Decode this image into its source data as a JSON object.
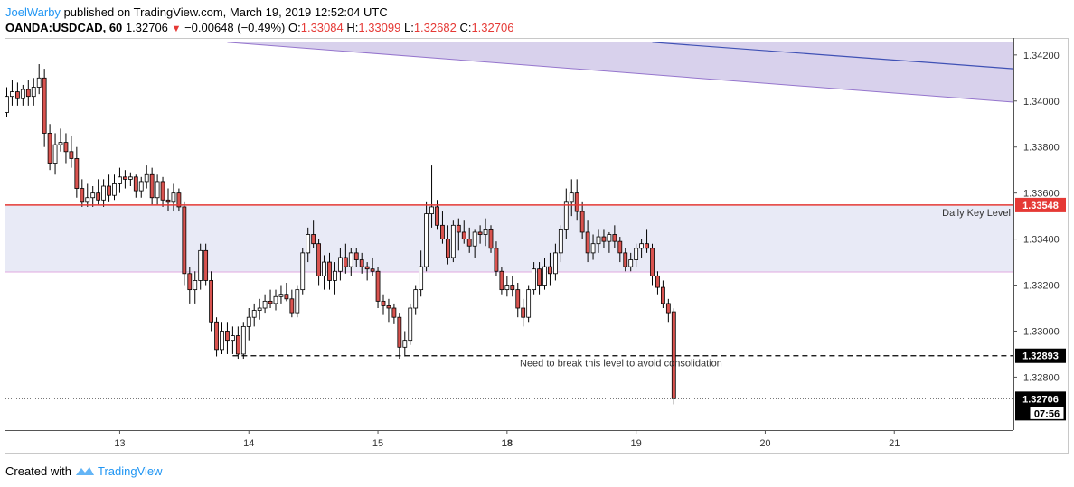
{
  "header": {
    "author": "JoelWarby",
    "published": "published on TradingView.com, March 19, 2019 12:52:04 UTC",
    "symbol": "OANDA:USDCAD, 60",
    "last": "1.32706",
    "arrow": "▼",
    "change": "−0.00648 (−0.49%)",
    "o_label": "O:",
    "o_val": "1.33084",
    "h_label": "H:",
    "h_val": "1.33099",
    "l_label": "L:",
    "l_val": "1.32682",
    "c_label": "C:",
    "c_val": "1.32706"
  },
  "footer": {
    "created_with": "Created with",
    "brand": "TradingView"
  },
  "colors": {
    "up_body": "#ffffff",
    "down_body": "#d9534f",
    "wick": "#000000",
    "key_line": "#e53935",
    "zone_fill": "#e8eaf6",
    "channel_fill": "#d8d1ec",
    "channel_line": "#3f51b5",
    "tag_dark": "#000000",
    "tag_red": "#e53935"
  },
  "chart_data": {
    "type": "candlestick",
    "title": "",
    "xlabel": "",
    "ylabel": "",
    "ylim": [
      1.3257,
      1.3427
    ],
    "y_ticks": [
      "1.34200",
      "1.34000",
      "1.33800",
      "1.33600",
      "1.33400",
      "1.33200",
      "1.33000",
      "1.32800"
    ],
    "y_tick_values": [
      1.342,
      1.34,
      1.338,
      1.336,
      1.334,
      1.332,
      1.33,
      1.328
    ],
    "x_ticks": [
      {
        "label": "13",
        "bar": 21,
        "bold": false
      },
      {
        "label": "14",
        "bar": 45,
        "bold": false
      },
      {
        "label": "15",
        "bar": 69,
        "bold": false
      },
      {
        "label": "18",
        "bar": 93,
        "bold": true
      },
      {
        "label": "19",
        "bar": 117,
        "bold": false
      },
      {
        "label": "20",
        "bar": 141,
        "bold": false
      },
      {
        "label": "21",
        "bar": 165,
        "bold": false
      }
    ],
    "candles": [
      [
        1.3395,
        1.3406,
        1.3393,
        1.3402
      ],
      [
        1.3402,
        1.3409,
        1.3398,
        1.3404
      ],
      [
        1.3404,
        1.3408,
        1.3398,
        1.3401
      ],
      [
        1.3401,
        1.3407,
        1.3398,
        1.3405
      ],
      [
        1.3405,
        1.3409,
        1.3398,
        1.3402
      ],
      [
        1.3402,
        1.341,
        1.3398,
        1.3406
      ],
      [
        1.3406,
        1.3416,
        1.3403,
        1.341
      ],
      [
        1.341,
        1.3414,
        1.338,
        1.3386
      ],
      [
        1.3386,
        1.339,
        1.337,
        1.3373
      ],
      [
        1.3373,
        1.3386,
        1.3368,
        1.3381
      ],
      [
        1.3381,
        1.3388,
        1.3378,
        1.3382
      ],
      [
        1.3382,
        1.3386,
        1.3373,
        1.3378
      ],
      [
        1.3378,
        1.3385,
        1.3371,
        1.3375
      ],
      [
        1.3375,
        1.338,
        1.3358,
        1.3362
      ],
      [
        1.3362,
        1.3366,
        1.3354,
        1.3356
      ],
      [
        1.3356,
        1.3364,
        1.3354,
        1.3358
      ],
      [
        1.3358,
        1.3363,
        1.3354,
        1.336
      ],
      [
        1.336,
        1.3366,
        1.3355,
        1.3357
      ],
      [
        1.3357,
        1.3366,
        1.3354,
        1.3363
      ],
      [
        1.3363,
        1.3368,
        1.3356,
        1.3359
      ],
      [
        1.3359,
        1.3368,
        1.3357,
        1.3364
      ],
      [
        1.3364,
        1.3371,
        1.336,
        1.3367
      ],
      [
        1.3367,
        1.337,
        1.3362,
        1.3366
      ],
      [
        1.3366,
        1.3369,
        1.3363,
        1.3367
      ],
      [
        1.3367,
        1.3368,
        1.3358,
        1.3361
      ],
      [
        1.3361,
        1.3367,
        1.3358,
        1.3365
      ],
      [
        1.3365,
        1.3372,
        1.3362,
        1.3368
      ],
      [
        1.3368,
        1.3371,
        1.3355,
        1.3358
      ],
      [
        1.3358,
        1.3368,
        1.3355,
        1.3365
      ],
      [
        1.3365,
        1.3367,
        1.3354,
        1.3357
      ],
      [
        1.3357,
        1.3362,
        1.3352,
        1.3356
      ],
      [
        1.3356,
        1.3364,
        1.3352,
        1.336
      ],
      [
        1.336,
        1.3362,
        1.3352,
        1.3354
      ],
      [
        1.3354,
        1.3356,
        1.332,
        1.3325
      ],
      [
        1.3325,
        1.3328,
        1.3312,
        1.3318
      ],
      [
        1.3318,
        1.3326,
        1.3312,
        1.3322
      ],
      [
        1.3322,
        1.3338,
        1.3318,
        1.3335
      ],
      [
        1.3335,
        1.3338,
        1.332,
        1.3322
      ],
      [
        1.3322,
        1.3326,
        1.33,
        1.3304
      ],
      [
        1.3304,
        1.3306,
        1.3289,
        1.3292
      ],
      [
        1.3292,
        1.3304,
        1.329,
        1.33
      ],
      [
        1.33,
        1.3304,
        1.329,
        1.3296
      ],
      [
        1.3296,
        1.3302,
        1.329,
        1.3298
      ],
      [
        1.3298,
        1.3302,
        1.3288,
        1.329
      ],
      [
        1.329,
        1.3304,
        1.3288,
        1.3302
      ],
      [
        1.3302,
        1.331,
        1.3296,
        1.3306
      ],
      [
        1.3306,
        1.3312,
        1.3302,
        1.3309
      ],
      [
        1.3309,
        1.3314,
        1.3305,
        1.331
      ],
      [
        1.331,
        1.3316,
        1.3308,
        1.3313
      ],
      [
        1.3313,
        1.3318,
        1.331,
        1.3312
      ],
      [
        1.3312,
        1.3318,
        1.3309,
        1.3315
      ],
      [
        1.3315,
        1.332,
        1.3312,
        1.3316
      ],
      [
        1.3316,
        1.3321,
        1.3313,
        1.3314
      ],
      [
        1.3314,
        1.3318,
        1.3306,
        1.3308
      ],
      [
        1.3308,
        1.332,
        1.3306,
        1.3318
      ],
      [
        1.3318,
        1.3336,
        1.3316,
        1.3334
      ],
      [
        1.3334,
        1.3345,
        1.333,
        1.3342
      ],
      [
        1.3342,
        1.3348,
        1.3336,
        1.3338
      ],
      [
        1.3338,
        1.334,
        1.332,
        1.3324
      ],
      [
        1.3324,
        1.3333,
        1.3318,
        1.333
      ],
      [
        1.333,
        1.3334,
        1.3318,
        1.3322
      ],
      [
        1.3322,
        1.333,
        1.3316,
        1.3326
      ],
      [
        1.3326,
        1.3336,
        1.3322,
        1.3332
      ],
      [
        1.3332,
        1.3338,
        1.3325,
        1.3328
      ],
      [
        1.3328,
        1.3336,
        1.3324,
        1.3334
      ],
      [
        1.3334,
        1.3336,
        1.3328,
        1.3331
      ],
      [
        1.3331,
        1.3334,
        1.3325,
        1.3328
      ],
      [
        1.3328,
        1.333,
        1.3322,
        1.3327
      ],
      [
        1.3327,
        1.3332,
        1.3324,
        1.3326
      ],
      [
        1.3326,
        1.3328,
        1.331,
        1.3313
      ],
      [
        1.3313,
        1.3316,
        1.3307,
        1.3311
      ],
      [
        1.3311,
        1.3314,
        1.3304,
        1.331
      ],
      [
        1.331,
        1.3312,
        1.3303,
        1.3306
      ],
      [
        1.3306,
        1.3308,
        1.3288,
        1.3293
      ],
      [
        1.3293,
        1.33,
        1.3289,
        1.3296
      ],
      [
        1.3296,
        1.3312,
        1.3294,
        1.331
      ],
      [
        1.331,
        1.332,
        1.3307,
        1.3318
      ],
      [
        1.3318,
        1.3335,
        1.3315,
        1.3328
      ],
      [
        1.3328,
        1.3356,
        1.3326,
        1.3351
      ],
      [
        1.3351,
        1.3372,
        1.3345,
        1.3354
      ],
      [
        1.3354,
        1.3357,
        1.3344,
        1.3346
      ],
      [
        1.3346,
        1.3352,
        1.3338,
        1.334
      ],
      [
        1.334,
        1.3346,
        1.3329,
        1.3332
      ],
      [
        1.3332,
        1.3348,
        1.333,
        1.3346
      ],
      [
        1.3346,
        1.3349,
        1.3335,
        1.3343
      ],
      [
        1.3343,
        1.3348,
        1.3338,
        1.334
      ],
      [
        1.334,
        1.3345,
        1.3334,
        1.3337
      ],
      [
        1.3337,
        1.3344,
        1.3332,
        1.3343
      ],
      [
        1.3343,
        1.3346,
        1.3338,
        1.3342
      ],
      [
        1.3342,
        1.3349,
        1.3337,
        1.3344
      ],
      [
        1.3344,
        1.3346,
        1.3334,
        1.3336
      ],
      [
        1.3336,
        1.3339,
        1.3324,
        1.3326
      ],
      [
        1.3326,
        1.3328,
        1.3316,
        1.3318
      ],
      [
        1.3318,
        1.3324,
        1.3315,
        1.332
      ],
      [
        1.332,
        1.3324,
        1.3315,
        1.3318
      ],
      [
        1.3318,
        1.3321,
        1.3306,
        1.331
      ],
      [
        1.331,
        1.3314,
        1.3302,
        1.3306
      ],
      [
        1.3306,
        1.332,
        1.3304,
        1.3318
      ],
      [
        1.3318,
        1.333,
        1.3316,
        1.3327
      ],
      [
        1.3327,
        1.333,
        1.3316,
        1.332
      ],
      [
        1.332,
        1.3332,
        1.3318,
        1.3328
      ],
      [
        1.3328,
        1.3334,
        1.332,
        1.3325
      ],
      [
        1.3325,
        1.3338,
        1.3322,
        1.3334
      ],
      [
        1.3334,
        1.3346,
        1.333,
        1.3344
      ],
      [
        1.3344,
        1.3362,
        1.334,
        1.3356
      ],
      [
        1.3356,
        1.3366,
        1.335,
        1.336
      ],
      [
        1.336,
        1.3366,
        1.3348,
        1.3352
      ],
      [
        1.3352,
        1.3356,
        1.334,
        1.3343
      ],
      [
        1.3343,
        1.3348,
        1.333,
        1.3334
      ],
      [
        1.3334,
        1.3342,
        1.3331,
        1.3338
      ],
      [
        1.3338,
        1.3344,
        1.3334,
        1.3341
      ],
      [
        1.3341,
        1.3344,
        1.3336,
        1.3339
      ],
      [
        1.3339,
        1.3343,
        1.3334,
        1.3342
      ],
      [
        1.3342,
        1.3346,
        1.3336,
        1.3339
      ],
      [
        1.3339,
        1.3341,
        1.333,
        1.3334
      ],
      [
        1.3334,
        1.3336,
        1.3326,
        1.3328
      ],
      [
        1.3328,
        1.3334,
        1.3326,
        1.3331
      ],
      [
        1.3331,
        1.3338,
        1.3328,
        1.3336
      ],
      [
        1.3336,
        1.334,
        1.3332,
        1.3338
      ],
      [
        1.3338,
        1.3344,
        1.3334,
        1.3336
      ],
      [
        1.3336,
        1.3338,
        1.332,
        1.3324
      ],
      [
        1.3324,
        1.3326,
        1.3316,
        1.3319
      ],
      [
        1.3319,
        1.3322,
        1.331,
        1.3312
      ],
      [
        1.3312,
        1.3314,
        1.3304,
        1.3308
      ],
      [
        1.33084,
        1.33099,
        1.32682,
        1.32706
      ]
    ],
    "key_level": {
      "value": 1.33548,
      "label": "Daily Key Level",
      "tag": "1.33548"
    },
    "zone": {
      "top": 1.33548,
      "bottom": 1.33257
    },
    "support": {
      "value": 1.32893,
      "label": "Need to break this level to avoid consolidation",
      "tag": "1.32893",
      "start_bar": 42
    },
    "last_price": {
      "value": 1.32706,
      "tag": "1.32706",
      "countdown": "07:56"
    },
    "channel": {
      "start_bar": 41,
      "end_bar": 183,
      "upper": [
        1.34255,
        1.34255
      ],
      "lower": [
        1.34255,
        1.33995
      ],
      "mid_start_bar": 120,
      "mid": [
        1.34255,
        1.3414
      ]
    }
  }
}
